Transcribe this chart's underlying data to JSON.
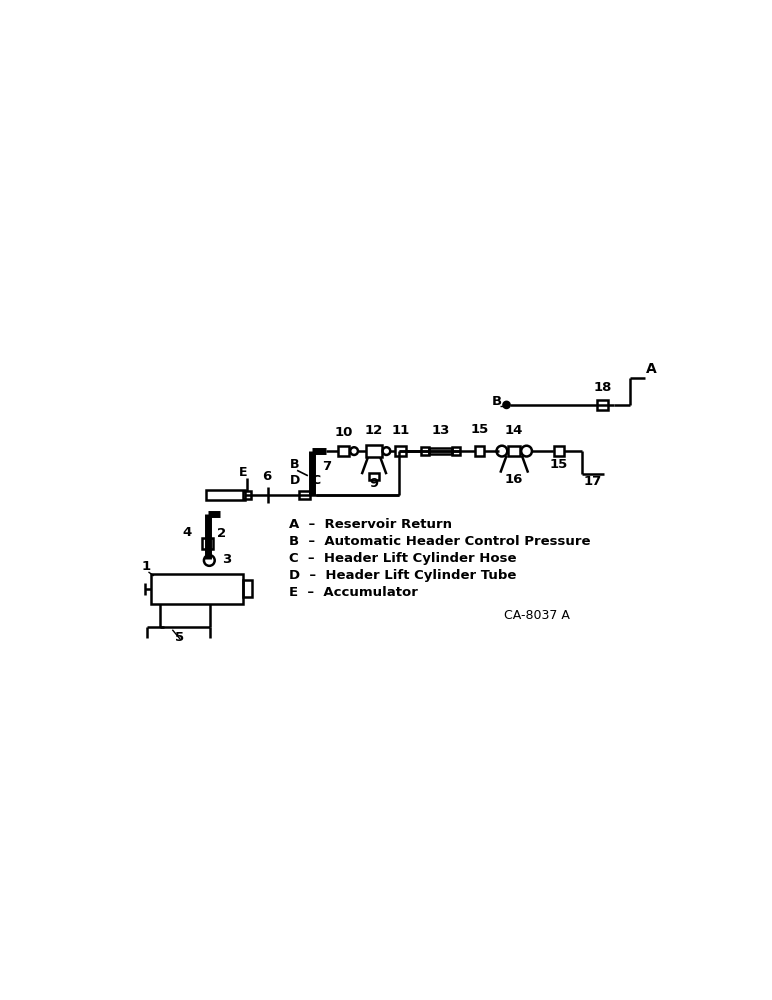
{
  "bg_color": "#ffffff",
  "line_color": "#000000",
  "lw": 1.8,
  "thick_lw": 5.0,
  "legend_items": [
    [
      "A",
      "Reservoir Return"
    ],
    [
      "B",
      "Automatic Header Control Pressure"
    ],
    [
      "C",
      "Header Lift Cylinder Hose"
    ],
    [
      "D",
      "Header Lift Cylinder Tube"
    ],
    [
      "E",
      "Accumulator"
    ]
  ],
  "ref_code": "CA-8037 A",
  "label_fontsize": 9.5
}
